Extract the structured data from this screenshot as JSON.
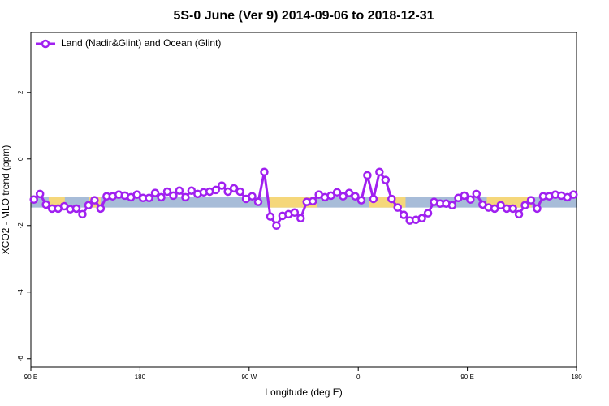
{
  "chart_data": {
    "type": "line",
    "title": "5S-0 June (Ver 9)   2014-09-06 to 2018-12-31",
    "x_label": "Longitude (deg E)",
    "y_label": "XCO2 - MLO trend (ppm)",
    "xlim": [
      90,
      540
    ],
    "xticks": [
      {
        "value": 90,
        "label": "90 E"
      },
      {
        "value": 180,
        "label": "180"
      },
      {
        "value": 270,
        "label": "90 W"
      },
      {
        "value": 360,
        "label": "0"
      },
      {
        "value": 450,
        "label": "90 E"
      },
      {
        "value": 540,
        "label": "180"
      }
    ],
    "ylim": [
      -6.25,
      3.8
    ],
    "yticks": [
      -6,
      -4,
      -2,
      0,
      2
    ],
    "legend": "top-left",
    "band": {
      "range": [
        -1.46,
        -1.15
      ],
      "color": "#a7bcd8",
      "highlight_color": "#f5d77a",
      "highlights": [
        [
          104.7,
          118
        ],
        [
          138,
          148
        ],
        [
          285.5,
          325.7
        ],
        [
          369,
          399
        ],
        [
          466,
          503
        ]
      ]
    },
    "x": [
      92.5,
      97.5,
      102.5,
      107.5,
      112.5,
      117.5,
      122.5,
      127.5,
      132.5,
      137.5,
      142.5,
      147.5,
      152.5,
      157.5,
      162.5,
      167.5,
      172.5,
      177.5,
      182.5,
      187.5,
      192.5,
      197.5,
      202.5,
      207.5,
      212.5,
      217.5,
      222.5,
      227.5,
      232.5,
      237.5,
      242.5,
      247.5,
      252.5,
      257.5,
      262.5,
      267.5,
      272.5,
      277.5,
      282.5,
      287.5,
      292.5,
      297.5,
      302.5,
      307.5,
      312.5,
      317.5,
      322.5,
      327.5,
      332.5,
      337.5,
      342.5,
      347.5,
      352.5,
      357.5,
      362.5,
      367.5,
      372.5,
      377.5,
      382.5,
      387.5,
      392.5,
      397.5,
      402.5,
      407.5,
      412.5,
      417.5,
      422.5,
      427.5,
      432.5,
      437.5,
      442.5,
      447.5,
      452.5,
      457.5,
      462.5,
      467.5,
      472.5,
      477.5,
      482.5,
      487.5,
      492.5,
      497.5,
      502.5,
      507.5,
      512.5,
      517.5,
      522.5,
      527.5,
      532.5,
      537.5
    ],
    "series": [
      {
        "name": "Land (Nadir&Glint) and Ocean (Glint)",
        "color": "#a020f0",
        "values": [
          -1.22,
          -1.05,
          -1.37,
          -1.49,
          -1.49,
          -1.42,
          -1.51,
          -1.49,
          -1.66,
          -1.39,
          -1.24,
          -1.49,
          -1.12,
          -1.12,
          -1.07,
          -1.1,
          -1.15,
          -1.07,
          -1.17,
          -1.17,
          -1.02,
          -1.15,
          -0.98,
          -1.1,
          -0.95,
          -1.15,
          -0.95,
          -1.05,
          -1.0,
          -0.98,
          -0.93,
          -0.8,
          -0.98,
          -0.88,
          -0.98,
          -1.2,
          -1.12,
          -1.29,
          -0.39,
          -1.73,
          -2.0,
          -1.71,
          -1.66,
          -1.61,
          -1.78,
          -1.29,
          -1.27,
          -1.07,
          -1.15,
          -1.1,
          -1.0,
          -1.12,
          -1.02,
          -1.12,
          -1.24,
          -0.49,
          -1.2,
          -0.39,
          -0.63,
          -1.2,
          -1.46,
          -1.68,
          -1.85,
          -1.83,
          -1.78,
          -1.63,
          -1.29,
          -1.34,
          -1.34,
          -1.39,
          -1.17,
          -1.1,
          -1.22,
          -1.05,
          -1.37,
          -1.46,
          -1.49,
          -1.39,
          -1.49,
          -1.49,
          -1.66,
          -1.39,
          -1.24,
          -1.49,
          -1.12,
          -1.12,
          -1.07,
          -1.1,
          -1.15,
          -1.07
        ]
      }
    ]
  }
}
